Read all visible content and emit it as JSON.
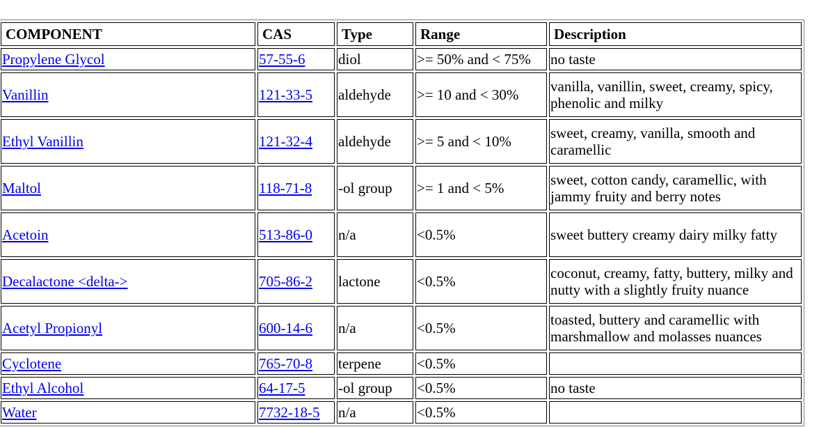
{
  "headers": {
    "component": "COMPONENT",
    "cas": "CAS",
    "type": "Type",
    "range": "Range",
    "description": "Description"
  },
  "rows": [
    {
      "component": "Propylene Glycol",
      "cas": "57-55-6",
      "type": "diol",
      "range": ">= 50% and < 75%",
      "description": "no taste"
    },
    {
      "component": "Vanillin",
      "cas": "121-33-5",
      "type": "aldehyde",
      "range": ">= 10 and < 30%",
      "description": "vanilla, vanillin, sweet, creamy, spicy, phenolic and milky"
    },
    {
      "component": "Ethyl Vanillin",
      "cas": "121-32-4",
      "type": "aldehyde",
      "range": ">= 5 and < 10%",
      "description": "sweet, creamy, vanilla, smooth and caramellic"
    },
    {
      "component": "Maltol",
      "cas": "118-71-8",
      "type": "-ol group",
      "range": ">= 1 and < 5%",
      "description": "sweet, cotton candy, caramellic, with jammy fruity and berry notes"
    },
    {
      "component": "Acetoin",
      "cas": "513-86-0",
      "type": "n/a",
      "range": "<0.5%",
      "description": "sweet buttery creamy dairy milky fatty"
    },
    {
      "component": "Decalactone <delta->",
      "cas": "705-86-2",
      "type": "lactone",
      "range": "<0.5%",
      "description": "coconut, creamy, fatty, buttery, milky and nutty with a slightly fruity nuance"
    },
    {
      "component": "Acetyl Propionyl",
      "cas": "600-14-6",
      "type": "n/a",
      "range": "<0.5%",
      "description": "toasted, buttery and caramellic with marshmallow and molasses nuances"
    },
    {
      "component": "Cyclotene",
      "cas": "765-70-8",
      "type": "terpene",
      "range": "<0.5%",
      "description": ""
    },
    {
      "component": "Ethyl Alcohol",
      "cas": "64-17-5",
      "type": "-ol group",
      "range": "<0.5%",
      "description": "no taste"
    },
    {
      "component": "Water",
      "cas": "7732-18-5",
      "type": "n/a",
      "range": "<0.5%",
      "description": ""
    }
  ]
}
